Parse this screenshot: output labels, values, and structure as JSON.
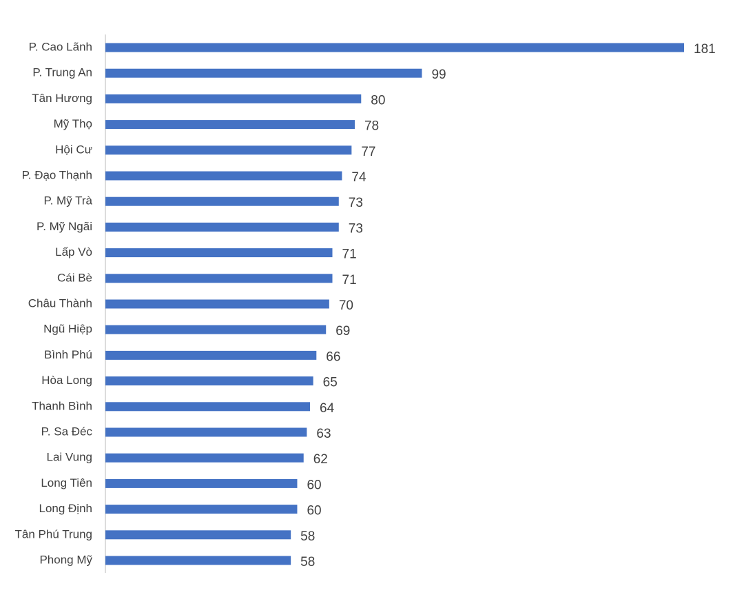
{
  "chart_data": {
    "type": "bar",
    "orientation": "horizontal",
    "color": "#4472c4",
    "categories": [
      "P. Cao Lãnh",
      "P. Trung An",
      "Tân Hương",
      "Mỹ Thọ",
      "Hội Cư",
      "P. Đạo Thạnh",
      "P. Mỹ Trà",
      "P. Mỹ Ngãi",
      "Lấp Vò",
      "Cái Bè",
      "Châu Thành",
      "Ngũ Hiệp",
      "Bình Phú",
      "Hòa Long",
      "Thanh Bình",
      "P. Sa Đéc",
      "Lai Vung",
      "Long Tiên",
      "Long Định",
      "Tân Phú Trung",
      "Phong Mỹ"
    ],
    "values": [
      181,
      99,
      80,
      78,
      77,
      74,
      73,
      73,
      71,
      71,
      70,
      69,
      66,
      65,
      64,
      63,
      62,
      60,
      60,
      58,
      58
    ]
  }
}
